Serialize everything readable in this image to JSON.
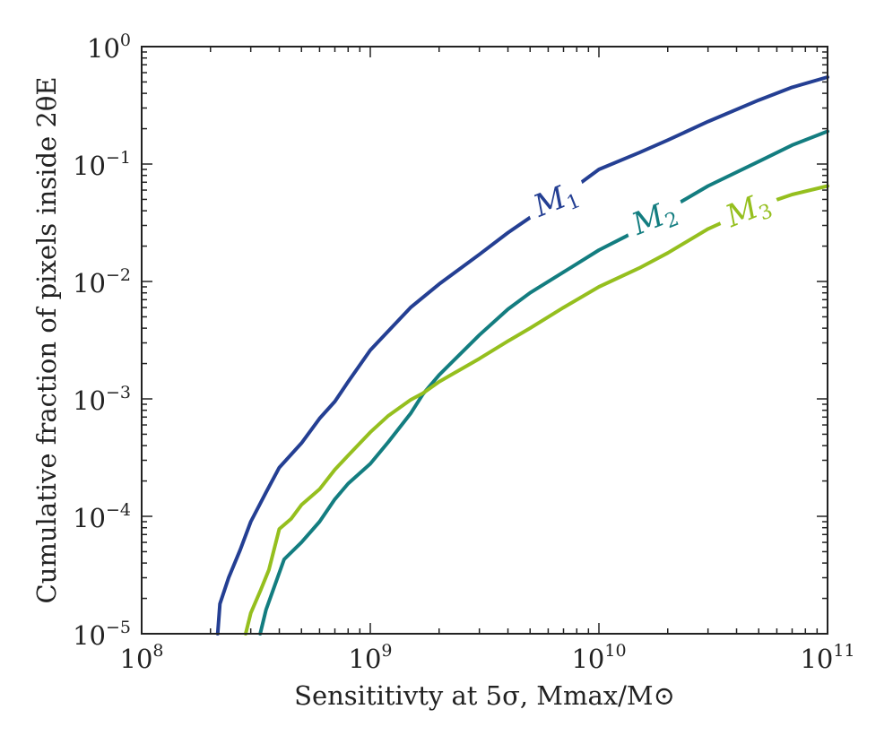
{
  "chart_data": {
    "type": "line",
    "xscale": "log",
    "yscale": "log",
    "xlim": [
      100000000.0,
      100000000000.0
    ],
    "ylim": [
      1e-05,
      1
    ],
    "x_ticks": [
      {
        "base": "10",
        "exp": "8",
        "value": 100000000.0
      },
      {
        "base": "10",
        "exp": "9",
        "value": 1000000000.0
      },
      {
        "base": "10",
        "exp": "10",
        "value": 10000000000.0
      },
      {
        "base": "10",
        "exp": "11",
        "value": 100000000000.0
      }
    ],
    "y_ticks": [
      {
        "base": "10",
        "exp": "0",
        "value": 1
      },
      {
        "base": "10",
        "exp": "−1",
        "value": 0.1
      },
      {
        "base": "10",
        "exp": "−2",
        "value": 0.01
      },
      {
        "base": "10",
        "exp": "−3",
        "value": 0.001
      },
      {
        "base": "10",
        "exp": "−4",
        "value": 0.0001
      },
      {
        "base": "10",
        "exp": "−5",
        "value": 1e-05
      }
    ],
    "xlabel": "Sensititivty at 5σ, Mmax/M⊙",
    "ylabel": "Cumulative fraction of pixels inside 2θE",
    "series": [
      {
        "name": "M1",
        "label_main": "M",
        "label_sub": "1",
        "color": "#243f93",
        "label_x": 6500000000.0,
        "points": [
          [
            215000000.0,
            1e-05
          ],
          [
            220000000.0,
            1.8e-05
          ],
          [
            240000000.0,
            3e-05
          ],
          [
            270000000.0,
            5.2e-05
          ],
          [
            300000000.0,
            9e-05
          ],
          [
            350000000.0,
            0.00016
          ],
          [
            400000000.0,
            0.00026
          ],
          [
            500000000.0,
            0.00042
          ],
          [
            600000000.0,
            0.00068
          ],
          [
            700000000.0,
            0.00095
          ],
          [
            800000000.0,
            0.0014
          ],
          [
            1000000000.0,
            0.0026
          ],
          [
            1500000000.0,
            0.006
          ],
          [
            2000000000.0,
            0.0095
          ],
          [
            3000000000.0,
            0.017
          ],
          [
            4000000000.0,
            0.026
          ],
          [
            5000000000.0,
            0.035
          ],
          [
            6000000000.0,
            0.044
          ],
          [
            7000000000.0,
            0.054
          ],
          [
            10000000000.0,
            0.09
          ],
          [
            15000000000.0,
            0.125
          ],
          [
            20000000000.0,
            0.16
          ],
          [
            30000000000.0,
            0.23
          ],
          [
            50000000000.0,
            0.35
          ],
          [
            70000000000.0,
            0.45
          ],
          [
            100000000000.0,
            0.55
          ]
        ]
      },
      {
        "name": "M2",
        "label_main": "M",
        "label_sub": "2",
        "color": "#137d80",
        "label_x": 17500000000.0,
        "points": [
          [
            330000000.0,
            1e-05
          ],
          [
            350000000.0,
            1.6e-05
          ],
          [
            380000000.0,
            2.5e-05
          ],
          [
            420000000.0,
            4.3e-05
          ],
          [
            500000000.0,
            6e-05
          ],
          [
            600000000.0,
            9e-05
          ],
          [
            700000000.0,
            0.00014
          ],
          [
            800000000.0,
            0.00019
          ],
          [
            1000000000.0,
            0.00028
          ],
          [
            1200000000.0,
            0.00043
          ],
          [
            1500000000.0,
            0.00075
          ],
          [
            1700000000.0,
            0.0011
          ],
          [
            2000000000.0,
            0.0016
          ],
          [
            3000000000.0,
            0.0035
          ],
          [
            4000000000.0,
            0.0058
          ],
          [
            5000000000.0,
            0.008
          ],
          [
            7000000000.0,
            0.012
          ],
          [
            10000000000.0,
            0.0185
          ],
          [
            13000000000.0,
            0.024
          ],
          [
            15000000000.0,
            0.028
          ],
          [
            20000000000.0,
            0.041
          ],
          [
            30000000000.0,
            0.065
          ],
          [
            50000000000.0,
            0.105
          ],
          [
            70000000000.0,
            0.145
          ],
          [
            100000000000.0,
            0.19
          ]
        ]
      },
      {
        "name": "M3",
        "label_main": "M",
        "label_sub": "3",
        "color": "#95bf1e",
        "label_x": 45000000000.0,
        "points": [
          [
            285000000.0,
            1e-05
          ],
          [
            300000000.0,
            1.5e-05
          ],
          [
            330000000.0,
            2.3e-05
          ],
          [
            360000000.0,
            3.5e-05
          ],
          [
            400000000.0,
            7.8e-05
          ],
          [
            450000000.0,
            9.5e-05
          ],
          [
            500000000.0,
            0.000125
          ],
          [
            600000000.0,
            0.00017
          ],
          [
            700000000.0,
            0.00025
          ],
          [
            800000000.0,
            0.00033
          ],
          [
            1000000000.0,
            0.00052
          ],
          [
            1200000000.0,
            0.00072
          ],
          [
            1500000000.0,
            0.00098
          ],
          [
            1700000000.0,
            0.00112
          ],
          [
            2000000000.0,
            0.0014
          ],
          [
            3000000000.0,
            0.0022
          ],
          [
            4000000000.0,
            0.0031
          ],
          [
            5000000000.0,
            0.004
          ],
          [
            7000000000.0,
            0.006
          ],
          [
            10000000000.0,
            0.009
          ],
          [
            15000000000.0,
            0.013
          ],
          [
            20000000000.0,
            0.0175
          ],
          [
            30000000000.0,
            0.028
          ],
          [
            40000000000.0,
            0.036
          ],
          [
            50000000000.0,
            0.044
          ],
          [
            70000000000.0,
            0.055
          ],
          [
            100000000000.0,
            0.065
          ]
        ]
      }
    ]
  }
}
